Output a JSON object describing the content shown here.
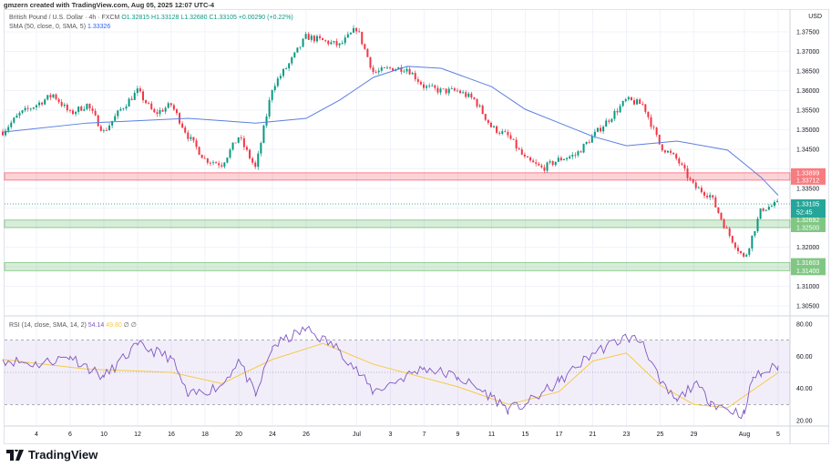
{
  "credit": "gmzern created with TradingView.com, Aug 05, 2025 12:07 UTC-4",
  "legend": {
    "symbol": "British Pound / U.S. Dollar · 4h · FXCM",
    "open": "O1.32815",
    "high": "H1.33128",
    "low": "L1.32680",
    "close": "C1.33105",
    "change": "+0.00290 (+0.22%)",
    "sma_label": "SMA (50, close, 0, SMA, 5)",
    "sma_value": "1.33326"
  },
  "rsi_legend": {
    "label": "RSI (14, close, SMA, 14, 2)",
    "rsi": "54.14",
    "rsi_sma": "49.80",
    "extra": "∅ ∅"
  },
  "currency": "USD",
  "brand": "TradingView",
  "colors": {
    "up": "#089981",
    "down": "#f23645",
    "sma": "#5b7fe0",
    "rsi": "#7e57c2",
    "rsi_sma": "#f7c948"
  },
  "chart_data": {
    "type": "candlestick",
    "price_axis": {
      "min": 1.305,
      "max": 1.375,
      "ticks": [
        "1.37500",
        "1.37000",
        "1.36500",
        "1.36000",
        "1.35500",
        "1.35000",
        "1.34500",
        "1.33500",
        "1.32000",
        "1.31000",
        "1.30500"
      ]
    },
    "time_labels": [
      {
        "date": "2025-06-04",
        "label": "4"
      },
      {
        "date": "2025-06-06",
        "label": "6"
      },
      {
        "date": "2025-06-10",
        "label": "10"
      },
      {
        "date": "2025-06-12",
        "label": "12"
      },
      {
        "date": "2025-06-16",
        "label": "16"
      },
      {
        "date": "2025-06-18",
        "label": "18"
      },
      {
        "date": "2025-06-20",
        "label": "20"
      },
      {
        "date": "2025-06-24",
        "label": "24"
      },
      {
        "date": "2025-06-26",
        "label": "26"
      },
      {
        "date": "2025-07-01",
        "label": "Jul"
      },
      {
        "date": "2025-07-03",
        "label": "3"
      },
      {
        "date": "2025-07-07",
        "label": "7"
      },
      {
        "date": "2025-07-09",
        "label": "9"
      },
      {
        "date": "2025-07-11",
        "label": "11"
      },
      {
        "date": "2025-07-15",
        "label": "15"
      },
      {
        "date": "2025-07-17",
        "label": "17"
      },
      {
        "date": "2025-07-21",
        "label": "21"
      },
      {
        "date": "2025-07-23",
        "label": "23"
      },
      {
        "date": "2025-07-25",
        "label": "25"
      },
      {
        "date": "2025-07-29",
        "label": "29"
      },
      {
        "date": "2025-08-01",
        "label": "Aug"
      },
      {
        "date": "2025-08-05",
        "label": "5"
      }
    ],
    "close_path": [
      [
        "2025-06-02",
        1.3495
      ],
      [
        "2025-06-03",
        1.354
      ],
      [
        "2025-06-04",
        1.3564
      ],
      [
        "2025-06-05",
        1.359
      ],
      [
        "2025-06-06",
        1.3541
      ],
      [
        "2025-06-09",
        1.3564
      ],
      [
        "2025-06-10",
        1.3494
      ],
      [
        "2025-06-11",
        1.3552
      ],
      [
        "2025-06-12",
        1.3599
      ],
      [
        "2025-06-13",
        1.354
      ],
      [
        "2025-06-16",
        1.3564
      ],
      [
        "2025-06-17",
        1.3483
      ],
      [
        "2025-06-18",
        1.3424
      ],
      [
        "2025-06-19",
        1.3412
      ],
      [
        "2025-06-20",
        1.3483
      ],
      [
        "2025-06-23",
        1.3401
      ],
      [
        "2025-06-24",
        1.361
      ],
      [
        "2025-06-25",
        1.3669
      ],
      [
        "2025-06-26",
        1.3738
      ],
      [
        "2025-06-27",
        1.3727
      ],
      [
        "2025-06-30",
        1.3715
      ],
      [
        "2025-07-01",
        1.376
      ],
      [
        "2025-07-02",
        1.3645
      ],
      [
        "2025-07-03",
        1.3657
      ],
      [
        "2025-07-04",
        1.3657
      ],
      [
        "2025-07-07",
        1.361
      ],
      [
        "2025-07-08",
        1.3599
      ],
      [
        "2025-07-09",
        1.3599
      ],
      [
        "2025-07-10",
        1.3576
      ],
      [
        "2025-07-11",
        1.3506
      ],
      [
        "2025-07-14",
        1.3483
      ],
      [
        "2025-07-15",
        1.3424
      ],
      [
        "2025-07-16",
        1.3401
      ],
      [
        "2025-07-17",
        1.3424
      ],
      [
        "2025-07-18",
        1.3436
      ],
      [
        "2025-07-21",
        1.3483
      ],
      [
        "2025-07-22",
        1.3529
      ],
      [
        "2025-07-23",
        1.3576
      ],
      [
        "2025-07-24",
        1.3564
      ],
      [
        "2025-07-25",
        1.3459
      ],
      [
        "2025-07-28",
        1.3424
      ],
      [
        "2025-07-29",
        1.3355
      ],
      [
        "2025-07-30",
        1.3331
      ],
      [
        "2025-07-31",
        1.3238
      ],
      [
        "2025-08-01",
        1.3169
      ],
      [
        "2025-08-04",
        1.3297
      ],
      [
        "2025-08-05",
        1.33105
      ]
    ],
    "sma50": [
      [
        "2025-06-02",
        1.3494
      ],
      [
        "2025-06-09",
        1.3517
      ],
      [
        "2025-06-17",
        1.3529
      ],
      [
        "2025-06-23",
        1.3517
      ],
      [
        "2025-06-26",
        1.3529
      ],
      [
        "2025-06-30",
        1.3576
      ],
      [
        "2025-07-02",
        1.3634
      ],
      [
        "2025-07-04",
        1.3662
      ],
      [
        "2025-07-08",
        1.3657
      ],
      [
        "2025-07-11",
        1.361
      ],
      [
        "2025-07-15",
        1.3552
      ],
      [
        "2025-07-21",
        1.3483
      ],
      [
        "2025-07-23",
        1.3459
      ],
      [
        "2025-07-28",
        1.3471
      ],
      [
        "2025-07-31",
        1.3448
      ],
      [
        "2025-08-04",
        1.3378
      ],
      [
        "2025-08-05",
        1.33326
      ]
    ],
    "zones": [
      {
        "type": "resistance",
        "top": 1.33899,
        "bottom": 1.33712,
        "labels": [
          "1.33899",
          "1.33712"
        ]
      },
      {
        "type": "support",
        "top": 1.32692,
        "bottom": 1.325,
        "labels": [
          "1.32692",
          "1.32500"
        ]
      },
      {
        "type": "support",
        "top": 1.31603,
        "bottom": 1.314,
        "labels": [
          "1.31603",
          "1.31400"
        ]
      }
    ],
    "current": {
      "price": 1.33105,
      "label": "1.33105",
      "countdown": "52:45"
    },
    "rsi_axis": {
      "min": 20,
      "max": 80,
      "ticks": [
        "80.00",
        "60.00",
        "40.00",
        "20.00"
      ],
      "upper": 70,
      "middle": 50,
      "lower": 30
    },
    "rsi": [
      [
        "2025-06-02",
        58
      ],
      [
        "2025-06-04",
        55
      ],
      [
        "2025-06-06",
        60
      ],
      [
        "2025-06-10",
        47
      ],
      [
        "2025-06-12",
        67
      ],
      [
        "2025-06-16",
        59
      ],
      [
        "2025-06-17",
        35
      ],
      [
        "2025-06-19",
        42
      ],
      [
        "2025-06-20",
        58
      ],
      [
        "2025-06-23",
        35
      ],
      [
        "2025-06-24",
        66
      ],
      [
        "2025-06-26",
        77
      ],
      [
        "2025-06-30",
        64
      ],
      [
        "2025-07-02",
        38
      ],
      [
        "2025-07-07",
        53
      ],
      [
        "2025-07-09",
        47
      ],
      [
        "2025-07-11",
        35
      ],
      [
        "2025-07-14",
        27
      ],
      [
        "2025-07-15",
        30
      ],
      [
        "2025-07-17",
        44
      ],
      [
        "2025-07-21",
        62
      ],
      [
        "2025-07-23",
        72
      ],
      [
        "2025-07-24",
        69
      ],
      [
        "2025-07-25",
        43
      ],
      [
        "2025-07-28",
        32
      ],
      [
        "2025-07-29",
        43
      ],
      [
        "2025-07-30",
        32
      ],
      [
        "2025-07-31",
        27
      ],
      [
        "2025-08-01",
        24
      ],
      [
        "2025-08-01T12",
        47
      ],
      [
        "2025-08-04",
        49
      ],
      [
        "2025-08-05",
        54.14
      ]
    ],
    "rsi_sma": [
      [
        "2025-06-02",
        58
      ],
      [
        "2025-06-09",
        52
      ],
      [
        "2025-06-16",
        50
      ],
      [
        "2025-06-19",
        43
      ],
      [
        "2025-06-24",
        58
      ],
      [
        "2025-06-27",
        68
      ],
      [
        "2025-07-02",
        55
      ],
      [
        "2025-07-09",
        41
      ],
      [
        "2025-07-14",
        30
      ],
      [
        "2025-07-17",
        38
      ],
      [
        "2025-07-21",
        57
      ],
      [
        "2025-07-23",
        62
      ],
      [
        "2025-07-25",
        42
      ],
      [
        "2025-07-29",
        30
      ],
      [
        "2025-07-31",
        28
      ],
      [
        "2025-08-05",
        49.8
      ]
    ]
  }
}
